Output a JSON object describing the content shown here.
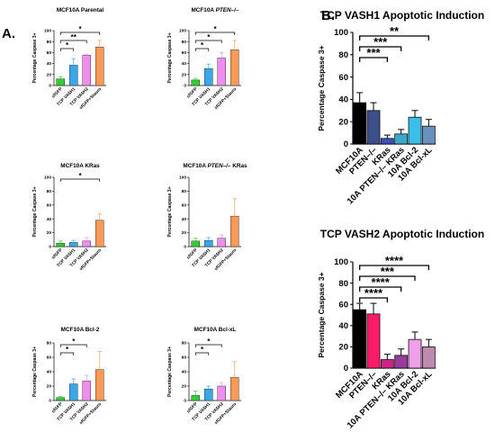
{
  "panel_labels": {
    "a": "A.",
    "b": "B."
  },
  "chart_data": [
    {
      "type": "bar",
      "title": "MCF10A Parental",
      "title_italic": "",
      "title_suffix": "",
      "ylabel": "Percentage Caspase 3+",
      "ylim": [
        0,
        100
      ],
      "yticks": [
        0,
        20,
        40,
        60,
        80,
        100
      ],
      "categories": [
        "sfGFP",
        "TCP VASH1",
        "TCP VASH2",
        "sfGFP+Stauro"
      ],
      "values": [
        12,
        37,
        55,
        70
      ],
      "errors": [
        4,
        12,
        2,
        12
      ],
      "colors": [
        "#33cc33",
        "#3aa8e8",
        "#f08ef0",
        "#ff9955"
      ],
      "significance": [
        {
          "from": 0,
          "to": 1,
          "label": "*"
        },
        {
          "from": 0,
          "to": 2,
          "label": "**"
        },
        {
          "from": 0,
          "to": 3,
          "label": "*"
        }
      ]
    },
    {
      "type": "bar",
      "title": "MCF10A ",
      "title_italic": "PTEN–/–",
      "title_suffix": "",
      "ylabel": "Percentage Caspase 3+",
      "ylim": [
        0,
        100
      ],
      "yticks": [
        0,
        20,
        40,
        60,
        80,
        100
      ],
      "categories": [
        "sfGFP",
        "TCP VASH1",
        "TCP VASH2",
        "sfGFP+Stauro"
      ],
      "values": [
        10,
        31,
        50,
        65
      ],
      "errors": [
        3,
        8,
        10,
        17
      ],
      "colors": [
        "#33cc33",
        "#3aa8e8",
        "#f08ef0",
        "#ff9955"
      ],
      "significance": [
        {
          "from": 0,
          "to": 1,
          "label": "*"
        },
        {
          "from": 0,
          "to": 2,
          "label": "*"
        },
        {
          "from": 0,
          "to": 3,
          "label": "*"
        }
      ]
    },
    {
      "type": "bar",
      "title": "MCF10A KRas",
      "title_italic": "",
      "title_suffix": "",
      "ylabel": "Percentage Caspase 3+",
      "ylim": [
        0,
        100
      ],
      "yticks": [
        0,
        20,
        40,
        60,
        80,
        100
      ],
      "categories": [
        "sfGFP",
        "TCP VASH1",
        "TCP VASH2",
        "sfGFP+Stauro"
      ],
      "values": [
        5,
        6,
        8,
        38
      ],
      "errors": [
        3,
        3,
        5,
        9
      ],
      "colors": [
        "#33cc33",
        "#3aa8e8",
        "#f08ef0",
        "#ff9955"
      ],
      "significance": [
        {
          "from": 0,
          "to": 3,
          "label": "*"
        }
      ]
    },
    {
      "type": "bar",
      "title": "MCF10A ",
      "title_italic": "PTEN–/–",
      "title_suffix": " KRas",
      "ylabel": "Percentage Caspase 3+",
      "ylim": [
        0,
        100
      ],
      "yticks": [
        0,
        20,
        40,
        60,
        80,
        100
      ],
      "categories": [
        "sfGFP",
        "TCP VASH1",
        "TCP VASH2",
        "sfGFP+Stauro"
      ],
      "values": [
        8,
        9,
        12,
        44
      ],
      "errors": [
        4,
        4,
        5,
        25
      ],
      "colors": [
        "#33cc33",
        "#3aa8e8",
        "#f08ef0",
        "#ff9955"
      ],
      "significance": []
    },
    {
      "type": "bar",
      "title": "MCF10A Bcl-2",
      "title_italic": "",
      "title_suffix": "",
      "ylabel": "Percentage Caspase 3+",
      "ylim": [
        0,
        80
      ],
      "yticks": [
        0,
        20,
        40,
        60,
        80
      ],
      "categories": [
        "sfGFP",
        "TCP VASH1",
        "TCP VASH2",
        "sfGFP+Stauro"
      ],
      "values": [
        4,
        23,
        27,
        43
      ],
      "errors": [
        2,
        7,
        8,
        25
      ],
      "colors": [
        "#33cc33",
        "#3aa8e8",
        "#f08ef0",
        "#ff9955"
      ],
      "significance": [
        {
          "from": 0,
          "to": 1,
          "label": "*"
        },
        {
          "from": 0,
          "to": 2,
          "label": "*"
        }
      ]
    },
    {
      "type": "bar",
      "title": "MCF10A Bcl-xL",
      "title_italic": "",
      "title_suffix": "",
      "ylabel": "Percentage Caspase 3+",
      "ylim": [
        0,
        80
      ],
      "yticks": [
        0,
        20,
        40,
        60,
        80
      ],
      "categories": [
        "sfGFP",
        "TCP VASH1",
        "TCP VASH2",
        "sfGFP+Stauro"
      ],
      "values": [
        7,
        16,
        20,
        32
      ],
      "errors": [
        6,
        4,
        5,
        22
      ],
      "colors": [
        "#33cc33",
        "#3aa8e8",
        "#f08ef0",
        "#ff9955"
      ],
      "significance": [
        {
          "from": 0,
          "to": 1,
          "label": "*"
        },
        {
          "from": 0,
          "to": 2,
          "label": "*"
        }
      ]
    },
    {
      "type": "bar",
      "title": "TCP VASH1 Apoptotic Induction",
      "title_italic": "",
      "title_suffix": "",
      "ylabel": "Percentage Caspase 3+",
      "ylim": [
        0,
        100
      ],
      "yticks": [
        0,
        20,
        40,
        60,
        80,
        100
      ],
      "categories": [
        "MCF10A",
        "PTEN–/–",
        "KRas",
        "10A PTEN–/– KRas",
        "10A Bcl-2",
        "10A Bcl-xL"
      ],
      "values": [
        37,
        30,
        5,
        9,
        24,
        16
      ],
      "errors": [
        9,
        7,
        3,
        4,
        6,
        6
      ],
      "colors": [
        "#000000",
        "#3d4f8a",
        "#3d4fc0",
        "#3aa8c8",
        "#3ac0e8",
        "#6a90c0"
      ],
      "significance": [
        {
          "from": 0,
          "to": 2,
          "label": "***"
        },
        {
          "from": 0,
          "to": 3,
          "label": "***"
        },
        {
          "from": 0,
          "to": 5,
          "label": "**"
        }
      ]
    },
    {
      "type": "bar",
      "title": "TCP VASH2 Apoptotic Induction",
      "title_italic": "",
      "title_suffix": "",
      "ylabel": "Percentage Caspase 3+",
      "ylim": [
        0,
        100
      ],
      "yticks": [
        0,
        20,
        40,
        60,
        80,
        100
      ],
      "categories": [
        "MCF10A",
        "PTEN–/–",
        "KRas",
        "10A PTEN–/– KRas",
        "10A Bcl-2",
        "10A Bcl-xL"
      ],
      "values": [
        55,
        51,
        8,
        12,
        27,
        20
      ],
      "errors": [
        6,
        10,
        5,
        6,
        7,
        7
      ],
      "colors": [
        "#000000",
        "#ff1a6a",
        "#d0208a",
        "#9a3a9a",
        "#f0a0e8",
        "#c08ab0"
      ],
      "significance": [
        {
          "from": 0,
          "to": 2,
          "label": "****"
        },
        {
          "from": 0,
          "to": 3,
          "label": "****"
        },
        {
          "from": 0,
          "to": 4,
          "label": "***"
        },
        {
          "from": 0,
          "to": 5,
          "label": "****"
        }
      ]
    }
  ]
}
